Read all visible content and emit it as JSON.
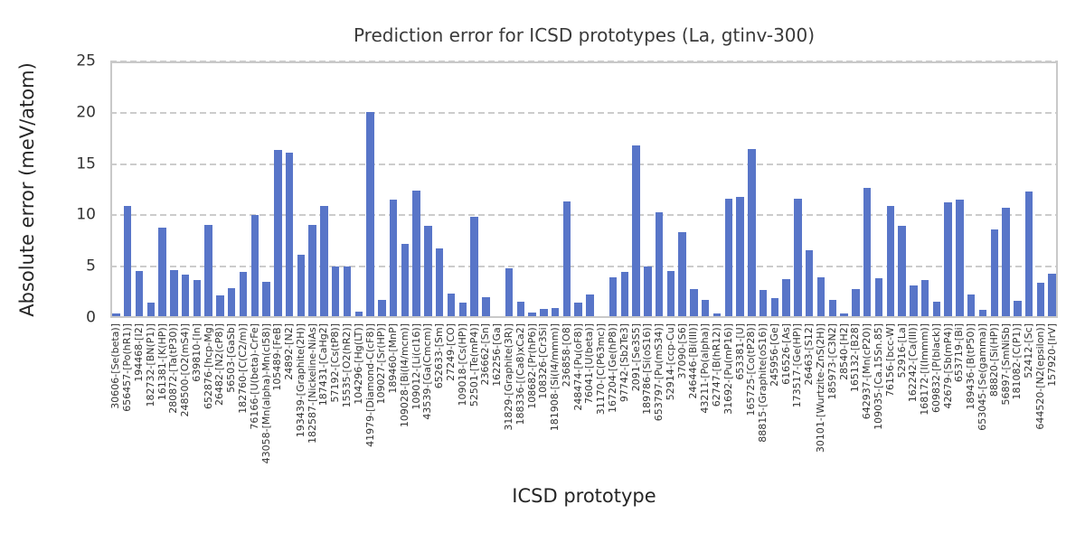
{
  "title": "Prediction error for ICSD prototypes (La, gtinv-300)",
  "chart_data": {
    "type": "bar",
    "title": "Prediction error for ICSD prototypes (La, gtinv-300)",
    "xlabel": "ICSD prototype",
    "ylabel": "Absolute error (meV/atom)",
    "ylim": [
      0,
      25
    ],
    "yticks": [
      0,
      5,
      10,
      15,
      20,
      25
    ],
    "grid": "horizontal dashed",
    "legend": "none",
    "bar_color": "#5875c8",
    "grid_color": "#cccccc",
    "categories": [
      "30606-[Se(beta)]",
      "656457-[Po(hR1)]",
      "194468-[I2]",
      "182732-[BN(P1)]",
      "161381-[K(HP)]",
      "280872-[Ta(tP30)]",
      "248500-[O2(mS4)]",
      "639810-[In]",
      "652876-[hcp-Mg]",
      "26482-[N2(cP8)]",
      "56503-[GaSb]",
      "182760-[C(C2/m)]",
      "76166-[U(beta)-CrFe]",
      "43058-[Mn(alpha)-Mn(cI58)]",
      "105489-[FeB]",
      "24892-[N2]",
      "193439-[Graphite(2H)]",
      "182587-[Nickeline-NiAs]",
      "187431-[CaHg2]",
      "57192-[Cs(tP8)]",
      "15535-[O2(hR2)]",
      "104296-[Hg(LT)]",
      "41979-[Diamond-C(cF8)]",
      "109027-[Sr(HP)]",
      "189460-[MnP]",
      "109028-[Bi(I4/mcm)]",
      "109012-[Li(cI16)]",
      "43539-[Ga(Cmcm)]",
      "652633-[Sm]",
      "27249-[CO]",
      "109018-[Cs(HP)]",
      "52501-[Te(mP4)]",
      "236662-[Sn]",
      "162256-[Ga]",
      "31829-[Graphite(3R)]",
      "188336-[(Ca8)xCa2]",
      "108682-[Pr(hP6)]",
      "108326-[Cr3Si]",
      "181908-[Si(I4/mmm)]",
      "236858-[O8]",
      "248474-[Pu(oF8)]",
      "76041-[U(beta)]",
      "31170-[C(P63mc)]",
      "167204-[Ge(hP8)]",
      "97742-[Sb2Te3]",
      "2091-[Se3S5]",
      "189786-[Si(oS16)]",
      "653797-[Pu(mS34)]",
      "52914-[ccp-Cu]",
      "37090-[S6]",
      "246446-[Bi(III)]",
      "43211-[Po(alpha)]",
      "62747-[B(hR12)]",
      "31692-[Pu(mP16)]",
      "653381-[U]",
      "165725-[Co(tP28)]",
      "88815-[Graphite(oS16)]",
      "245956-[Ge]",
      "616526-[As]",
      "173517-[Ge(HP)]",
      "26463-[S12]",
      "30101-[Wurtzite-ZnS(2H)]",
      "185973-[C3N2]",
      "28540-[H2]",
      "165132-[B28]",
      "642937-[Mn(cP20)]",
      "109035-[Ca.15Sn.85]",
      "76156-[bcc-W]",
      "52916-[La]",
      "162242-[Ca(III)]",
      "168172-[I(Immm)]",
      "609832-[P(black)]",
      "42679-[Sb(mP4)]",
      "653719-[Bi]",
      "189436-[B(tP50)]",
      "653045-[Se(gamma)]",
      "88820-[Si(HP)]",
      "56897-[SmNiSb]",
      "181082-[C(P1)]",
      "52412-[Sc]",
      "644520-[N2(epsilon)]",
      "157920-[IrV]"
    ],
    "values": [
      0.4,
      10.9,
      4.6,
      1.5,
      8.8,
      4.7,
      4.2,
      3.7,
      9.1,
      2.2,
      2.9,
      4.5,
      10.0,
      3.5,
      16.4,
      16.1,
      6.2,
      9.1,
      10.9,
      5.0,
      5.0,
      0.6,
      20.1,
      1.8,
      11.5,
      7.2,
      12.4,
      9.0,
      6.8,
      2.4,
      1.5,
      9.9,
      2.0,
      0.05,
      4.8,
      1.6,
      0.5,
      0.9,
      1.0,
      11.4,
      1.5,
      2.3,
      0.2,
      4.0,
      4.5,
      16.8,
      5.0,
      10.3,
      4.6,
      8.4,
      2.8,
      1.8,
      0.4,
      11.6,
      11.8,
      16.5,
      2.7,
      1.9,
      3.8,
      11.6,
      6.6,
      4.0,
      1.8,
      0.4,
      2.8,
      12.7,
      3.9,
      10.9,
      9.0,
      3.2,
      3.7,
      1.6,
      11.3,
      11.5,
      2.3,
      0.8,
      8.6,
      10.7,
      1.7,
      12.3,
      3.4,
      4.3
    ]
  }
}
